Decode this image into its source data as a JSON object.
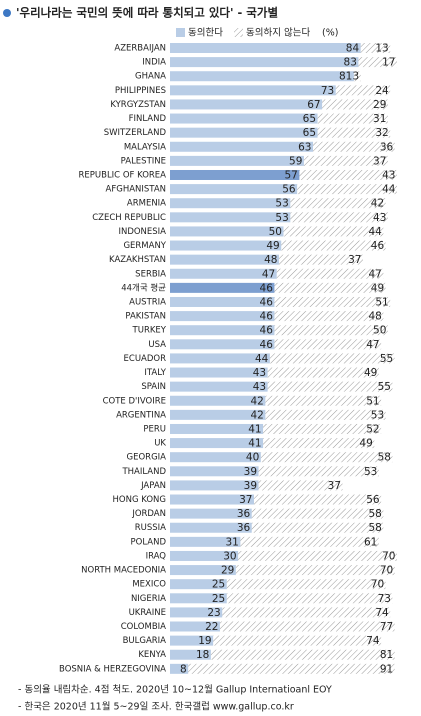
{
  "chart_data": {
    "type": "stacked-barh",
    "title": "'우리나라는 국민의 뜻에 따라 통치되고 있다' - 국가별",
    "unit": "(%)",
    "categories": [
      "AZERBAIJAN",
      "INDIA",
      "GHANA",
      "PHILIPPINES",
      "KYRGYZSTAN",
      "FINLAND",
      "SWITZERLAND",
      "MALAYSIA",
      "PALESTINE",
      "REPUBLIC OF KOREA",
      "AFGHANISTAN",
      "ARMENIA",
      "CZECH REPUBLIC",
      "INDONESIA",
      "GERMANY",
      "KAZAKHSTAN",
      "SERBIA",
      "44개국 평균",
      "AUSTRIA",
      "PAKISTAN",
      "TURKEY",
      "USA",
      "ECUADOR",
      "ITALY",
      "SPAIN",
      "COTE D'IVOIRE",
      "ARGENTINA",
      "PERU",
      "UK",
      "GEORGIA",
      "THAILAND",
      "JAPAN",
      "HONG KONG",
      "JORDAN",
      "RUSSIA",
      "POLAND",
      "IRAQ",
      "NORTH MACEDONIA",
      "MEXICO",
      "NIGERIA",
      "UKRAINE",
      "COLOMBIA",
      "BULGARIA",
      "KENYA",
      "BOSNIA & HERZEGOVINA"
    ],
    "series": [
      {
        "name": "동의한다",
        "color": "#b9cde6",
        "values": [
          84,
          83,
          81,
          73,
          67,
          65,
          65,
          63,
          59,
          57,
          56,
          53,
          53,
          50,
          49,
          48,
          47,
          46,
          46,
          46,
          46,
          46,
          44,
          43,
          43,
          42,
          42,
          41,
          41,
          40,
          39,
          39,
          37,
          36,
          36,
          31,
          30,
          29,
          25,
          25,
          23,
          22,
          19,
          18,
          8
        ]
      },
      {
        "name": "동의하지 않는다",
        "color": "#9a9a9a",
        "pattern": "hatch",
        "values": [
          13,
          17,
          3,
          24,
          29,
          31,
          32,
          36,
          37,
          43,
          44,
          42,
          43,
          44,
          46,
          37,
          47,
          49,
          51,
          48,
          50,
          47,
          55,
          49,
          55,
          51,
          53,
          52,
          49,
          58,
          53,
          37,
          56,
          58,
          58,
          61,
          70,
          70,
          70,
          73,
          74,
          77,
          74,
          81,
          91
        ]
      }
    ],
    "highlight": {
      "color": "#7d9fd0",
      "categories": [
        "REPUBLIC OF KOREA",
        "44개국 평균"
      ]
    },
    "xlim": [
      0,
      100
    ],
    "notes": [
      "- 동의율 내림차순. 4점 척도. 2020년 10~12월 Gallup Internatioanl EOY",
      "- 한국은 2020년 11월 5~29일 조사. 한국갤럽 www.gallup.co.kr"
    ]
  }
}
